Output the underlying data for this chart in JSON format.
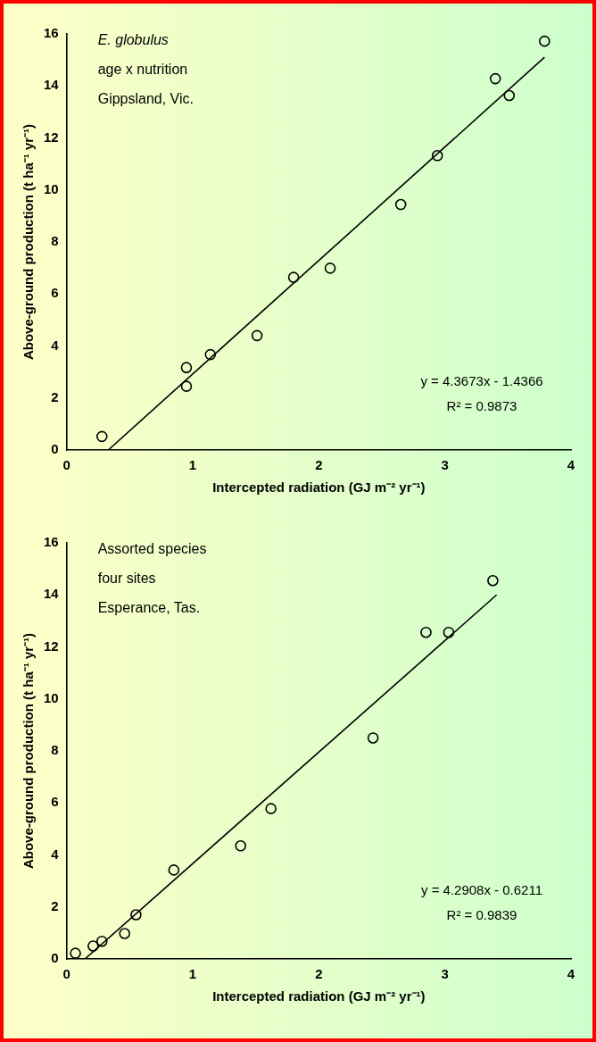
{
  "chart_data": [
    {
      "type": "scatter",
      "xlabel": "Intercepted radiation (GJ m⁻² yr⁻¹)",
      "ylabel": "Above-ground production (t ha⁻¹ yr⁻¹)",
      "annotations": [
        "E. globulus",
        "age x nutrition",
        "Gippsland, Vic.",
        "y = 4.3673x - 1.4366",
        "R² = 0.9873"
      ],
      "xlim": [
        0,
        4
      ],
      "xticks": [
        0,
        1,
        2,
        3,
        4
      ],
      "ylim": [
        0,
        16
      ],
      "yticks": [
        0,
        2,
        4,
        6,
        8,
        10,
        12,
        14,
        16
      ],
      "grid": false,
      "legend": false,
      "marker": "circle",
      "series": [
        {
          "color": "#000000",
          "x": [
            0.28,
            0.95,
            0.95,
            1.14,
            1.51,
            1.8,
            2.09,
            2.65,
            2.94,
            3.4,
            3.51,
            3.79
          ],
          "values": [
            0.52,
            2.45,
            3.17,
            3.67,
            4.4,
            6.64,
            6.99,
            9.44,
            11.32,
            14.28,
            13.63,
            15.72
          ]
        },
        {
          "type": "line",
          "color": "#000000",
          "marker": "none",
          "x": [
            0.33,
            3.79
          ],
          "values": [
            0,
            15.1
          ]
        }
      ]
    },
    {
      "type": "scatter",
      "xlabel": "Intercepted radiation (GJ m⁻² yr⁻¹)",
      "ylabel": "Above-ground production (t ha⁻¹ yr⁻¹)",
      "annotations": [
        "Assorted species",
        "four sites",
        "Esperance, Tas.",
        "y = 4.2908x - 0.6211",
        "R² = 0.9839"
      ],
      "xlim": [
        0,
        4
      ],
      "xticks": [
        0,
        1,
        2,
        3,
        4
      ],
      "ylim": [
        0,
        16
      ],
      "yticks": [
        0,
        2,
        4,
        6,
        8,
        10,
        12,
        14,
        16
      ],
      "grid": false,
      "legend": false,
      "marker": "circle",
      "series": [
        {
          "color": "#000000",
          "x": [
            0.07,
            0.21,
            0.28,
            0.46,
            0.55,
            0.85,
            1.38,
            1.62,
            2.43,
            2.85,
            3.03,
            3.38
          ],
          "values": [
            0.22,
            0.5,
            0.68,
            0.98,
            1.7,
            3.42,
            4.35,
            5.78,
            8.5,
            12.56,
            12.56,
            14.55
          ]
        },
        {
          "type": "line",
          "color": "#000000",
          "marker": "none",
          "x": [
            0.145,
            3.41
          ],
          "values": [
            0,
            14.0
          ]
        }
      ]
    }
  ]
}
